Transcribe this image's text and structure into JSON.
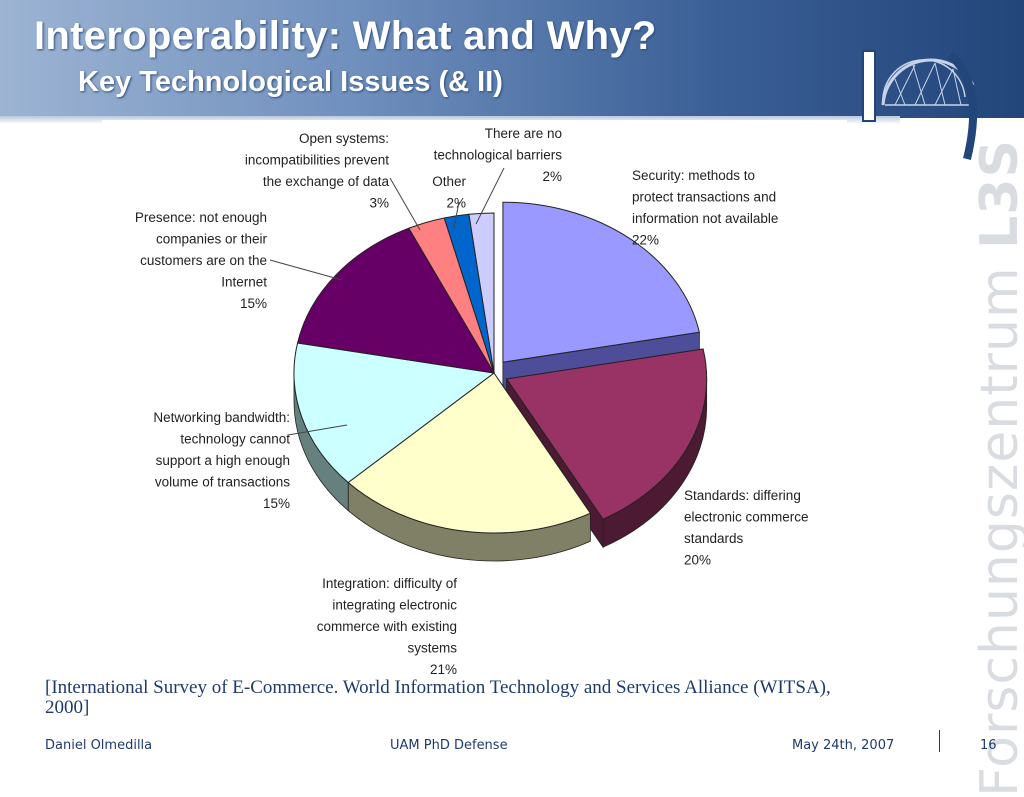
{
  "slide": {
    "title": "Interoperability: What and Why?",
    "subtitle": "Key Technological Issues (& II)",
    "watermark_main": "Forschungszentrum",
    "watermark_suffix": "L3S",
    "citation": "[International Survey of E-Commerce. World Information Technology and Services Alliance (WITSA), 2000]",
    "footer": {
      "author": "Daniel Olmedilla",
      "event": "UAM PhD Defense",
      "date": "May 24th, 2007",
      "page": "16"
    },
    "colors": {
      "header_dark": "#22457a",
      "header_light": "#9db4d3",
      "text_blue": "#1f3a6e"
    }
  },
  "chart_data": {
    "type": "pie",
    "style": "3d-exploded",
    "slices": [
      {
        "label_lines": [
          "Security: methods to",
          "protect transactions and",
          "information not available",
          "22%"
        ],
        "value": 22,
        "color": "#9999ff",
        "side": "#4d4d99",
        "exploded": true
      },
      {
        "label_lines": [
          "Standards: differing",
          "electronic commerce",
          "standards",
          "20%"
        ],
        "value": 20,
        "color": "#993366",
        "side": "#4d1a33",
        "exploded": true
      },
      {
        "label_lines": [
          "Integration: difficulty of",
          "integrating electronic",
          "commerce with existing",
          "systems",
          "21%"
        ],
        "value": 21,
        "color": "#ffffcc",
        "side": "#808066",
        "exploded": false
      },
      {
        "label_lines": [
          "Networking bandwidth:",
          "technology cannot",
          "support a high enough",
          "volume of transactions",
          "15%"
        ],
        "value": 15,
        "color": "#ccffff",
        "side": "#668080",
        "exploded": false
      },
      {
        "label_lines": [
          "Presence: not enough",
          "companies or their",
          "customers are on the",
          "Internet",
          "15%"
        ],
        "value": 15,
        "color": "#660066",
        "side": "#330033",
        "exploded": false
      },
      {
        "label_lines": [
          "Open systems:",
          "incompatibilities prevent",
          "the exchange of data",
          "3%"
        ],
        "value": 3,
        "color": "#ff8080",
        "side": "#804040",
        "exploded": false
      },
      {
        "label_lines": [
          "Other",
          "2%"
        ],
        "value": 2,
        "color": "#0066cc",
        "side": "#003366",
        "exploded": false
      },
      {
        "label_lines": [
          "There are no",
          "technological barriers",
          "2%"
        ],
        "value": 2,
        "color": "#ccccff",
        "side": "#666680",
        "exploded": false
      }
    ]
  }
}
